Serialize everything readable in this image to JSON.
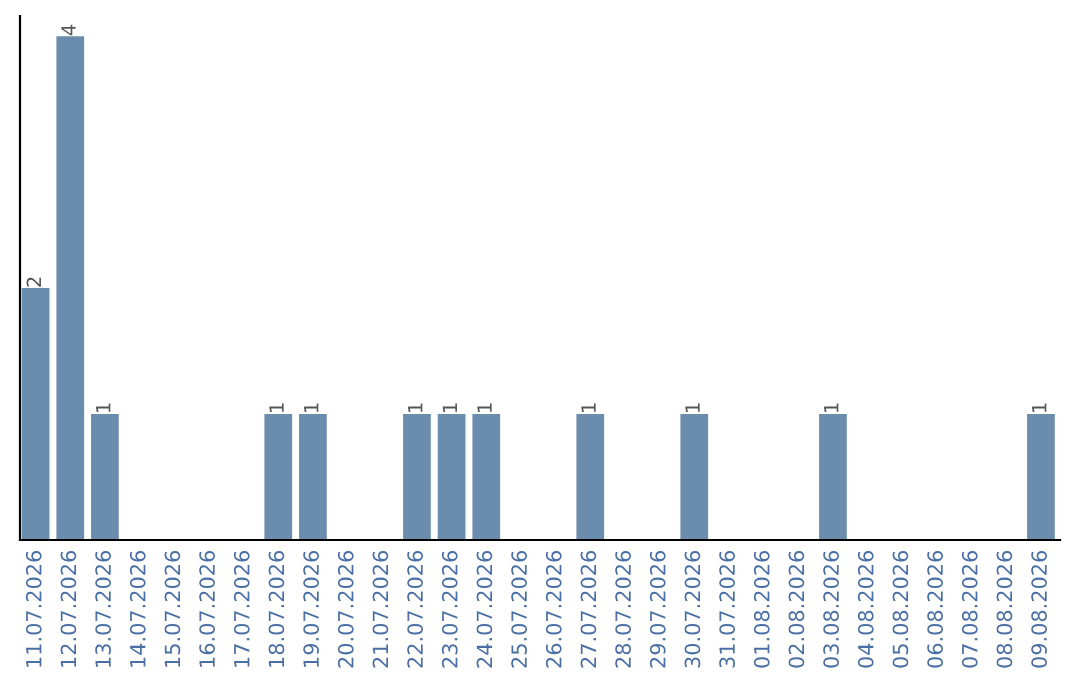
{
  "chart_data": {
    "type": "bar",
    "categories": [
      "11.07.2026",
      "12.07.2026",
      "13.07.2026",
      "14.07.2026",
      "15.07.2026",
      "16.07.2026",
      "17.07.2026",
      "18.07.2026",
      "19.07.2026",
      "20.07.2026",
      "21.07.2026",
      "22.07.2026",
      "23.07.2026",
      "24.07.2026",
      "25.07.2026",
      "26.07.2026",
      "27.07.2026",
      "28.07.2026",
      "29.07.2026",
      "30.07.2026",
      "31.07.2026",
      "01.08.2026",
      "02.08.2026",
      "03.08.2026",
      "04.08.2026",
      "05.08.2026",
      "06.08.2026",
      "07.08.2026",
      "08.08.2026",
      "09.08.2026"
    ],
    "values": [
      2,
      4,
      1,
      0,
      0,
      0,
      0,
      1,
      1,
      0,
      0,
      1,
      1,
      1,
      0,
      0,
      1,
      0,
      0,
      1,
      0,
      0,
      0,
      1,
      0,
      0,
      0,
      0,
      0,
      1
    ],
    "value_labels": [
      "2",
      "4",
      "1",
      null,
      null,
      null,
      null,
      "1",
      "1",
      null,
      null,
      "1",
      "1",
      "1",
      null,
      null,
      "1",
      null,
      null,
      "1",
      null,
      null,
      null,
      "1",
      null,
      null,
      null,
      null,
      null,
      "1"
    ],
    "color": "#6a8cad",
    "tick_labels": "x",
    "grid": false,
    "legend": false
  }
}
